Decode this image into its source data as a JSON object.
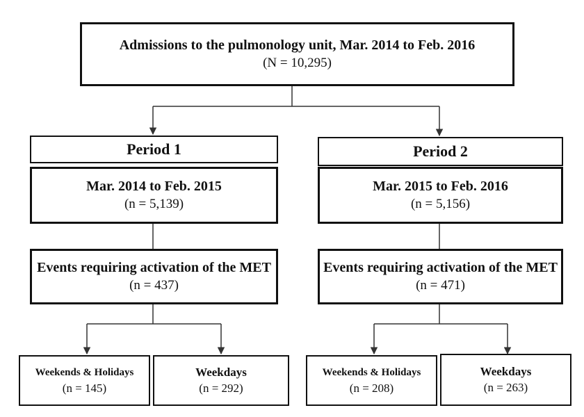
{
  "top": {
    "title": "Admissions to the pulmonology unit, Mar. 2014 to Feb. 2016",
    "count": "(N = 10,295)"
  },
  "period1": {
    "label": "Period 1",
    "range": "Mar. 2014 to Feb. 2015",
    "count": "(n = 5,139)",
    "events_title": "Events requiring activation of the MET",
    "events_count": "(n = 437)",
    "weekends_title": "Weekends & Holidays",
    "weekends_count": "(n = 145)",
    "weekdays_title": "Weekdays",
    "weekdays_count": "(n = 292)"
  },
  "period2": {
    "label": "Period 2",
    "range": "Mar. 2015 to Feb. 2016",
    "count": "(n = 5,156)",
    "events_title": "Events requiring activation of the MET",
    "events_count": "(n = 471)",
    "weekends_title": "Weekends & Holidays",
    "weekends_count": "(n = 208)",
    "weekdays_title": "Weekdays",
    "weekdays_count": "(n = 263)"
  }
}
